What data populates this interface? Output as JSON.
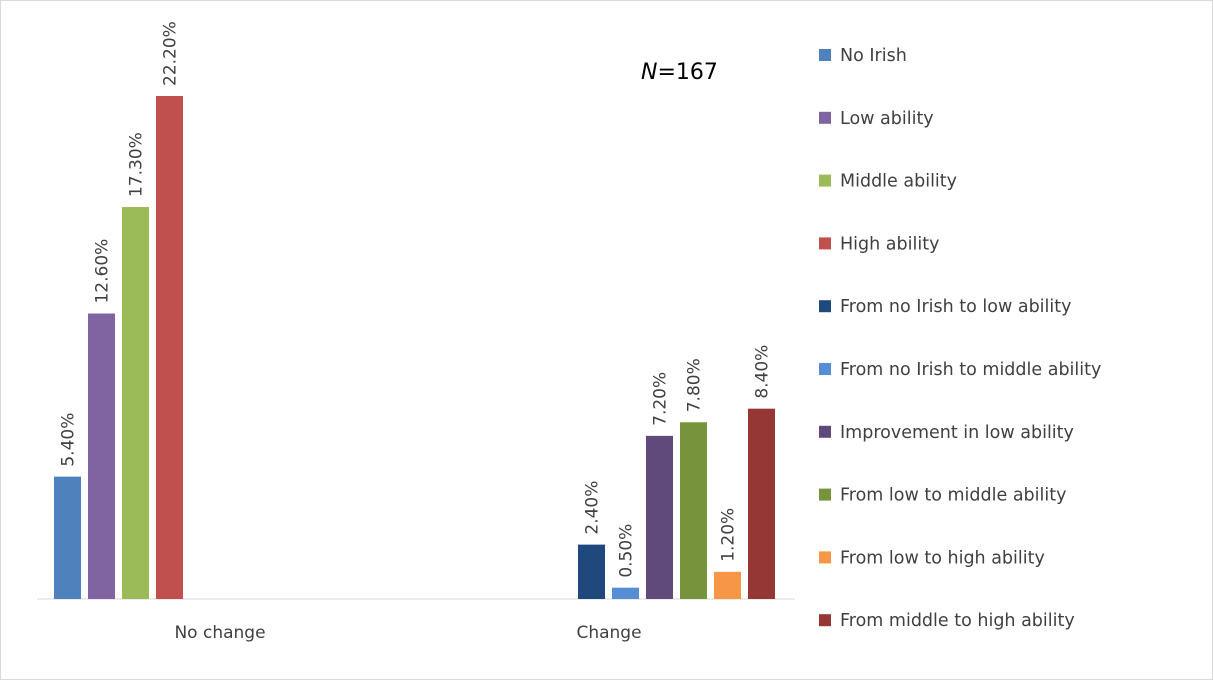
{
  "chart_data": {
    "type": "bar",
    "categories": [
      "No change",
      "Change"
    ],
    "series": [
      {
        "name": "No Irish",
        "color": "#4F81BD",
        "values": [
          5.4,
          null
        ],
        "labels": [
          "5.40%",
          null
        ]
      },
      {
        "name": "Low ability",
        "color": "#8064A2",
        "values": [
          12.6,
          null
        ],
        "labels": [
          "12.60%",
          null
        ]
      },
      {
        "name": "Middle ability",
        "color": "#9BBB59",
        "values": [
          17.3,
          null
        ],
        "labels": [
          "17.30%",
          null
        ]
      },
      {
        "name": "High ability",
        "color": "#C0504D",
        "values": [
          22.2,
          null
        ],
        "labels": [
          "22.20%",
          null
        ]
      },
      {
        "name": "From no Irish to low ability",
        "color": "#1F497D",
        "values": [
          null,
          2.4
        ],
        "labels": [
          null,
          "2.40%"
        ]
      },
      {
        "name": "From no Irish to middle ability",
        "color": "#558ED5",
        "values": [
          null,
          0.5
        ],
        "labels": [
          null,
          "0.50%"
        ]
      },
      {
        "name": "Improvement in low ability",
        "color": "#604A7B",
        "values": [
          null,
          7.2
        ],
        "labels": [
          null,
          "7.20%"
        ]
      },
      {
        "name": "From low  to middle ability",
        "color": "#77933C",
        "values": [
          null,
          7.8
        ],
        "labels": [
          null,
          "7.80%"
        ]
      },
      {
        "name": "From low to high ability",
        "color": "#F79646",
        "values": [
          null,
          1.2
        ],
        "labels": [
          null,
          "1.20%"
        ]
      },
      {
        "name": "From middle to high ability",
        "color": "#953735",
        "values": [
          null,
          8.4
        ],
        "labels": [
          null,
          "8.40%"
        ]
      }
    ],
    "ylim": [
      0,
      22.2
    ],
    "xlabel": "",
    "ylabel": "",
    "grid": false,
    "legend_position": "right",
    "annotation": {
      "italic": "N",
      "text": "=167"
    }
  }
}
